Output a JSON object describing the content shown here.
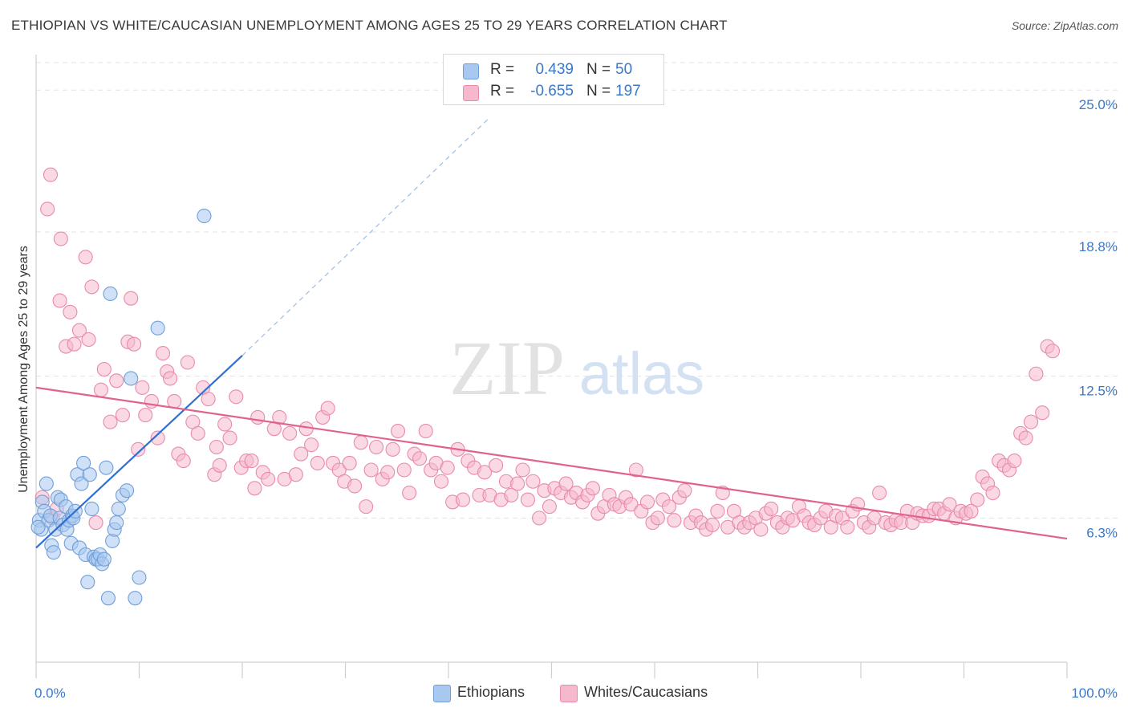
{
  "header": {
    "title": "ETHIOPIAN VS WHITE/CAUCASIAN UNEMPLOYMENT AMONG AGES 25 TO 29 YEARS CORRELATION CHART",
    "source": "Source: ZipAtlas.com"
  },
  "watermark": {
    "zip": "ZIP",
    "atlas": "atlas"
  },
  "legend": {
    "rows": [
      {
        "r_label": "R =",
        "r_value": "0.439",
        "n_label": "N =",
        "n_value": "50",
        "color": "#a9c8f0",
        "border": "#6f9fd8"
      },
      {
        "r_label": "R =",
        "r_value": "-0.655",
        "n_label": "N =",
        "n_value": "197",
        "color": "#f5b8cd",
        "border": "#e98aab"
      }
    ]
  },
  "bottom_legend": [
    {
      "label": "Ethiopians",
      "color": "#a9c8f0",
      "border": "#6f9fd8"
    },
    {
      "label": "Whites/Caucasians",
      "color": "#f5b8cd",
      "border": "#e98aab"
    }
  ],
  "chart_data": {
    "type": "scatter",
    "title": "ETHIOPIAN VS WHITE/CAUCASIAN UNEMPLOYMENT AMONG AGES 25 TO 29 YEARS CORRELATION CHART",
    "xlabel": "",
    "ylabel": "Unemployment Among Ages 25 to 29 years",
    "xlim": [
      0,
      100
    ],
    "ylim": [
      0,
      26.2
    ],
    "x_tick_labels": [
      "0.0%",
      "100.0%"
    ],
    "y_ticks": [
      6.3,
      12.5,
      18.8,
      25.0
    ],
    "y_tick_labels": [
      "6.3%",
      "12.5%",
      "18.8%",
      "25.0%"
    ],
    "grid": true,
    "series": [
      {
        "name": "Ethiopians",
        "color": "#a9c8f0",
        "edge": "#6f9fd8",
        "trend": {
          "color": "#2d6fd4",
          "x": [
            0,
            20
          ],
          "y": [
            5.0,
            13.4
          ],
          "dashed_to": [
            44,
            23.8
          ]
        },
        "points": [
          [
            0.3,
            6.2
          ],
          [
            0.5,
            5.8
          ],
          [
            0.6,
            7.0
          ],
          [
            0.8,
            6.6
          ],
          [
            1.0,
            7.8
          ],
          [
            1.2,
            6.2
          ],
          [
            1.4,
            6.4
          ],
          [
            1.5,
            5.1
          ],
          [
            1.7,
            4.8
          ],
          [
            1.9,
            5.8
          ],
          [
            2.1,
            7.2
          ],
          [
            2.3,
            6.3
          ],
          [
            2.4,
            7.1
          ],
          [
            2.6,
            6.0
          ],
          [
            2.9,
            6.8
          ],
          [
            3.0,
            5.8
          ],
          [
            3.2,
            6.2
          ],
          [
            3.4,
            5.2
          ],
          [
            3.5,
            6.4
          ],
          [
            3.6,
            6.3
          ],
          [
            3.8,
            6.6
          ],
          [
            4.0,
            8.2
          ],
          [
            4.2,
            5.0
          ],
          [
            4.4,
            7.8
          ],
          [
            4.6,
            8.7
          ],
          [
            4.8,
            4.7
          ],
          [
            5.0,
            3.5
          ],
          [
            5.2,
            8.2
          ],
          [
            5.4,
            6.7
          ],
          [
            5.6,
            4.6
          ],
          [
            5.8,
            4.5
          ],
          [
            6.0,
            4.5
          ],
          [
            6.2,
            4.7
          ],
          [
            6.4,
            4.3
          ],
          [
            6.6,
            4.5
          ],
          [
            6.8,
            8.5
          ],
          [
            7.0,
            2.8
          ],
          [
            7.2,
            16.1
          ],
          [
            7.4,
            5.3
          ],
          [
            7.6,
            5.8
          ],
          [
            7.8,
            6.1
          ],
          [
            8.0,
            6.7
          ],
          [
            8.4,
            7.3
          ],
          [
            8.8,
            7.5
          ],
          [
            9.2,
            12.4
          ],
          [
            9.6,
            2.8
          ],
          [
            10.0,
            3.7
          ],
          [
            11.8,
            14.6
          ],
          [
            16.3,
            19.5
          ],
          [
            0.2,
            5.9
          ]
        ]
      },
      {
        "name": "Whites/Caucasians",
        "color": "#f5b8cd",
        "edge": "#e98aab",
        "trend": {
          "color": "#e0628f",
          "x": [
            0,
            100
          ],
          "y": [
            12.0,
            5.4
          ]
        },
        "points": [
          [
            1.4,
            21.3
          ],
          [
            1.1,
            19.8
          ],
          [
            2.3,
            15.8
          ],
          [
            2.4,
            18.5
          ],
          [
            2.9,
            13.8
          ],
          [
            3.3,
            15.3
          ],
          [
            3.7,
            13.9
          ],
          [
            4.2,
            14.5
          ],
          [
            4.8,
            17.7
          ],
          [
            5.1,
            14.1
          ],
          [
            5.4,
            16.4
          ],
          [
            6.3,
            11.9
          ],
          [
            6.6,
            12.8
          ],
          [
            7.2,
            10.5
          ],
          [
            7.8,
            12.3
          ],
          [
            8.4,
            10.8
          ],
          [
            8.9,
            14.0
          ],
          [
            9.2,
            15.9
          ],
          [
            9.5,
            13.9
          ],
          [
            9.9,
            9.3
          ],
          [
            10.3,
            12.0
          ],
          [
            10.6,
            10.8
          ],
          [
            11.2,
            11.4
          ],
          [
            11.8,
            9.8
          ],
          [
            12.3,
            13.5
          ],
          [
            12.7,
            12.7
          ],
          [
            13.0,
            12.4
          ],
          [
            13.4,
            11.4
          ],
          [
            13.8,
            9.1
          ],
          [
            14.3,
            8.8
          ],
          [
            14.7,
            13.1
          ],
          [
            15.2,
            10.5
          ],
          [
            15.7,
            10.0
          ],
          [
            16.2,
            12.0
          ],
          [
            16.7,
            11.5
          ],
          [
            17.3,
            8.2
          ],
          [
            17.8,
            8.6
          ],
          [
            18.3,
            10.4
          ],
          [
            18.8,
            9.8
          ],
          [
            19.4,
            11.6
          ],
          [
            19.9,
            8.5
          ],
          [
            20.4,
            8.8
          ],
          [
            20.9,
            8.8
          ],
          [
            21.5,
            10.7
          ],
          [
            22.0,
            8.3
          ],
          [
            22.5,
            8.0
          ],
          [
            23.1,
            10.2
          ],
          [
            23.6,
            10.7
          ],
          [
            24.1,
            8.0
          ],
          [
            24.6,
            10.0
          ],
          [
            25.2,
            8.2
          ],
          [
            25.7,
            9.1
          ],
          [
            26.2,
            10.2
          ],
          [
            26.7,
            9.5
          ],
          [
            27.3,
            8.7
          ],
          [
            27.8,
            10.7
          ],
          [
            28.3,
            11.1
          ],
          [
            28.8,
            8.7
          ],
          [
            29.4,
            8.4
          ],
          [
            29.9,
            7.9
          ],
          [
            30.4,
            8.7
          ],
          [
            30.9,
            7.7
          ],
          [
            31.5,
            9.6
          ],
          [
            32.0,
            6.8
          ],
          [
            32.5,
            8.4
          ],
          [
            33.0,
            9.4
          ],
          [
            33.6,
            8.0
          ],
          [
            34.1,
            8.3
          ],
          [
            34.6,
            9.3
          ],
          [
            35.1,
            10.1
          ],
          [
            35.7,
            8.4
          ],
          [
            36.2,
            7.4
          ],
          [
            36.7,
            9.1
          ],
          [
            37.2,
            8.9
          ],
          [
            37.8,
            10.1
          ],
          [
            38.3,
            8.4
          ],
          [
            38.8,
            8.7
          ],
          [
            39.3,
            7.9
          ],
          [
            39.9,
            8.5
          ],
          [
            40.4,
            7.0
          ],
          [
            40.9,
            9.3
          ],
          [
            41.4,
            7.1
          ],
          [
            41.9,
            8.8
          ],
          [
            42.5,
            8.5
          ],
          [
            43.0,
            7.3
          ],
          [
            43.5,
            8.3
          ],
          [
            44.0,
            7.3
          ],
          [
            44.6,
            8.6
          ],
          [
            45.1,
            7.1
          ],
          [
            45.6,
            7.9
          ],
          [
            46.1,
            7.3
          ],
          [
            46.7,
            7.8
          ],
          [
            47.2,
            8.4
          ],
          [
            47.7,
            7.1
          ],
          [
            48.2,
            7.9
          ],
          [
            48.8,
            6.3
          ],
          [
            49.3,
            7.5
          ],
          [
            49.8,
            6.8
          ],
          [
            50.3,
            7.6
          ],
          [
            50.9,
            7.4
          ],
          [
            51.4,
            7.8
          ],
          [
            51.9,
            7.2
          ],
          [
            52.4,
            7.4
          ],
          [
            53.0,
            7.0
          ],
          [
            53.5,
            7.3
          ],
          [
            54.0,
            7.6
          ],
          [
            54.5,
            6.5
          ],
          [
            55.1,
            6.8
          ],
          [
            55.6,
            7.3
          ],
          [
            56.1,
            6.9
          ],
          [
            56.6,
            6.8
          ],
          [
            57.2,
            7.2
          ],
          [
            57.7,
            6.9
          ],
          [
            58.2,
            8.4
          ],
          [
            58.7,
            6.6
          ],
          [
            59.3,
            7.0
          ],
          [
            59.8,
            6.1
          ],
          [
            60.3,
            6.3
          ],
          [
            60.8,
            7.1
          ],
          [
            61.4,
            6.8
          ],
          [
            61.9,
            6.2
          ],
          [
            62.4,
            7.2
          ],
          [
            62.9,
            7.5
          ],
          [
            63.5,
            6.1
          ],
          [
            64.0,
            6.4
          ],
          [
            64.5,
            6.1
          ],
          [
            65.0,
            5.8
          ],
          [
            65.6,
            6.0
          ],
          [
            66.1,
            6.6
          ],
          [
            66.6,
            7.4
          ],
          [
            67.1,
            5.9
          ],
          [
            67.7,
            6.6
          ],
          [
            68.2,
            6.1
          ],
          [
            68.7,
            5.9
          ],
          [
            69.2,
            6.1
          ],
          [
            69.8,
            6.3
          ],
          [
            70.3,
            5.8
          ],
          [
            70.8,
            6.5
          ],
          [
            71.3,
            6.7
          ],
          [
            71.9,
            6.1
          ],
          [
            72.4,
            5.9
          ],
          [
            72.9,
            6.3
          ],
          [
            73.4,
            6.2
          ],
          [
            74.0,
            6.8
          ],
          [
            74.5,
            6.4
          ],
          [
            75.0,
            6.1
          ],
          [
            75.5,
            6.0
          ],
          [
            76.1,
            6.3
          ],
          [
            76.6,
            6.6
          ],
          [
            77.1,
            5.9
          ],
          [
            77.6,
            6.4
          ],
          [
            78.2,
            6.3
          ],
          [
            78.7,
            5.9
          ],
          [
            79.2,
            6.6
          ],
          [
            79.7,
            6.9
          ],
          [
            80.3,
            6.1
          ],
          [
            80.8,
            5.9
          ],
          [
            81.3,
            6.3
          ],
          [
            81.8,
            7.4
          ],
          [
            82.4,
            6.1
          ],
          [
            82.9,
            6.0
          ],
          [
            83.4,
            6.2
          ],
          [
            83.9,
            6.1
          ],
          [
            84.5,
            6.6
          ],
          [
            85.0,
            6.1
          ],
          [
            85.5,
            6.5
          ],
          [
            86.0,
            6.4
          ],
          [
            86.6,
            6.4
          ],
          [
            87.1,
            6.7
          ],
          [
            87.6,
            6.7
          ],
          [
            88.1,
            6.5
          ],
          [
            88.6,
            6.9
          ],
          [
            89.2,
            6.3
          ],
          [
            89.7,
            6.6
          ],
          [
            90.2,
            6.5
          ],
          [
            90.7,
            6.6
          ],
          [
            91.3,
            7.1
          ],
          [
            91.8,
            8.1
          ],
          [
            92.3,
            7.8
          ],
          [
            92.8,
            7.4
          ],
          [
            93.4,
            8.8
          ],
          [
            93.9,
            8.6
          ],
          [
            94.4,
            8.4
          ],
          [
            94.9,
            8.8
          ],
          [
            95.5,
            10.0
          ],
          [
            96.0,
            9.8
          ],
          [
            96.5,
            10.5
          ],
          [
            97.0,
            12.6
          ],
          [
            97.6,
            10.9
          ],
          [
            98.1,
            13.8
          ],
          [
            98.6,
            13.6
          ],
          [
            0.6,
            7.2
          ],
          [
            1.6,
            6.3
          ],
          [
            2.0,
            6.7
          ],
          [
            5.8,
            6.1
          ],
          [
            17.5,
            9.4
          ],
          [
            21.2,
            7.6
          ]
        ]
      }
    ]
  }
}
